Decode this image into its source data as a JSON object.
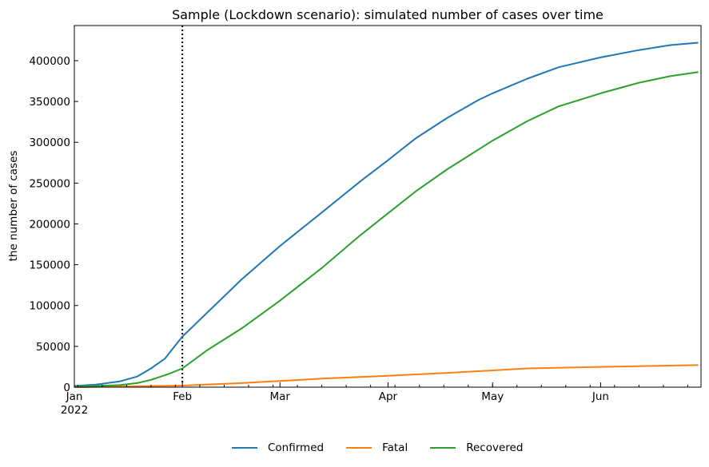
{
  "chart_data": {
    "type": "line",
    "title": "Sample (Lockdown scenario): simulated number of cases over time",
    "xlabel": "",
    "ylabel": "the number of cases",
    "x_tick_labels": [
      "Jan\n2022",
      "Feb",
      "Mar",
      "Apr",
      "May",
      "Jun"
    ],
    "y_tick_labels": [
      "0",
      "50000",
      "100000",
      "150000",
      "200000",
      "250000",
      "300000",
      "350000",
      "400000"
    ],
    "ylim": [
      0,
      443000
    ],
    "xlim": [
      "2022-01-01",
      "2022-06-29"
    ],
    "grid": false,
    "legend_position": "bottom-center",
    "vline": {
      "date": "2022-02-01",
      "style": "dotted",
      "color": "#000000"
    },
    "series": [
      {
        "name": "Confirmed",
        "color": "#1f77b4",
        "x_days": [
          0,
          6,
          13,
          18,
          22,
          26,
          28,
          31,
          39,
          48,
          59,
          71,
          82,
          90,
          98,
          107,
          116,
          120,
          130,
          139,
          151,
          162,
          171,
          179
        ],
        "values": [
          1500,
          3000,
          7000,
          13000,
          23000,
          35000,
          46000,
          62000,
          95000,
          132000,
          173000,
          214000,
          252000,
          278000,
          305000,
          330000,
          352000,
          360000,
          378000,
          392000,
          404000,
          413000,
          419000,
          422000
        ]
      },
      {
        "name": "Fatal",
        "color": "#ff7f0e",
        "x_days": [
          0,
          31,
          48,
          59,
          71,
          90,
          107,
          120,
          130,
          151,
          179
        ],
        "values": [
          0,
          2000,
          5000,
          7500,
          10500,
          14000,
          17500,
          20500,
          23000,
          24800,
          27000
        ]
      },
      {
        "name": "Recovered",
        "color": "#2ca02c",
        "x_days": [
          0,
          13,
          18,
          22,
          27,
          31,
          38,
          48,
          59,
          71,
          82,
          90,
          98,
          107,
          120,
          130,
          139,
          151,
          162,
          171,
          179
        ],
        "values": [
          500,
          2500,
          5000,
          9000,
          16000,
          23000,
          45000,
          72000,
          106000,
          146000,
          186000,
          213000,
          240000,
          267000,
          302000,
          326000,
          344000,
          360000,
          373000,
          381000,
          386000
        ]
      }
    ]
  },
  "legend": {
    "items": [
      {
        "label": "Confirmed",
        "color": "#1f77b4"
      },
      {
        "label": "Fatal",
        "color": "#ff7f0e"
      },
      {
        "label": "Recovered",
        "color": "#2ca02c"
      }
    ]
  }
}
